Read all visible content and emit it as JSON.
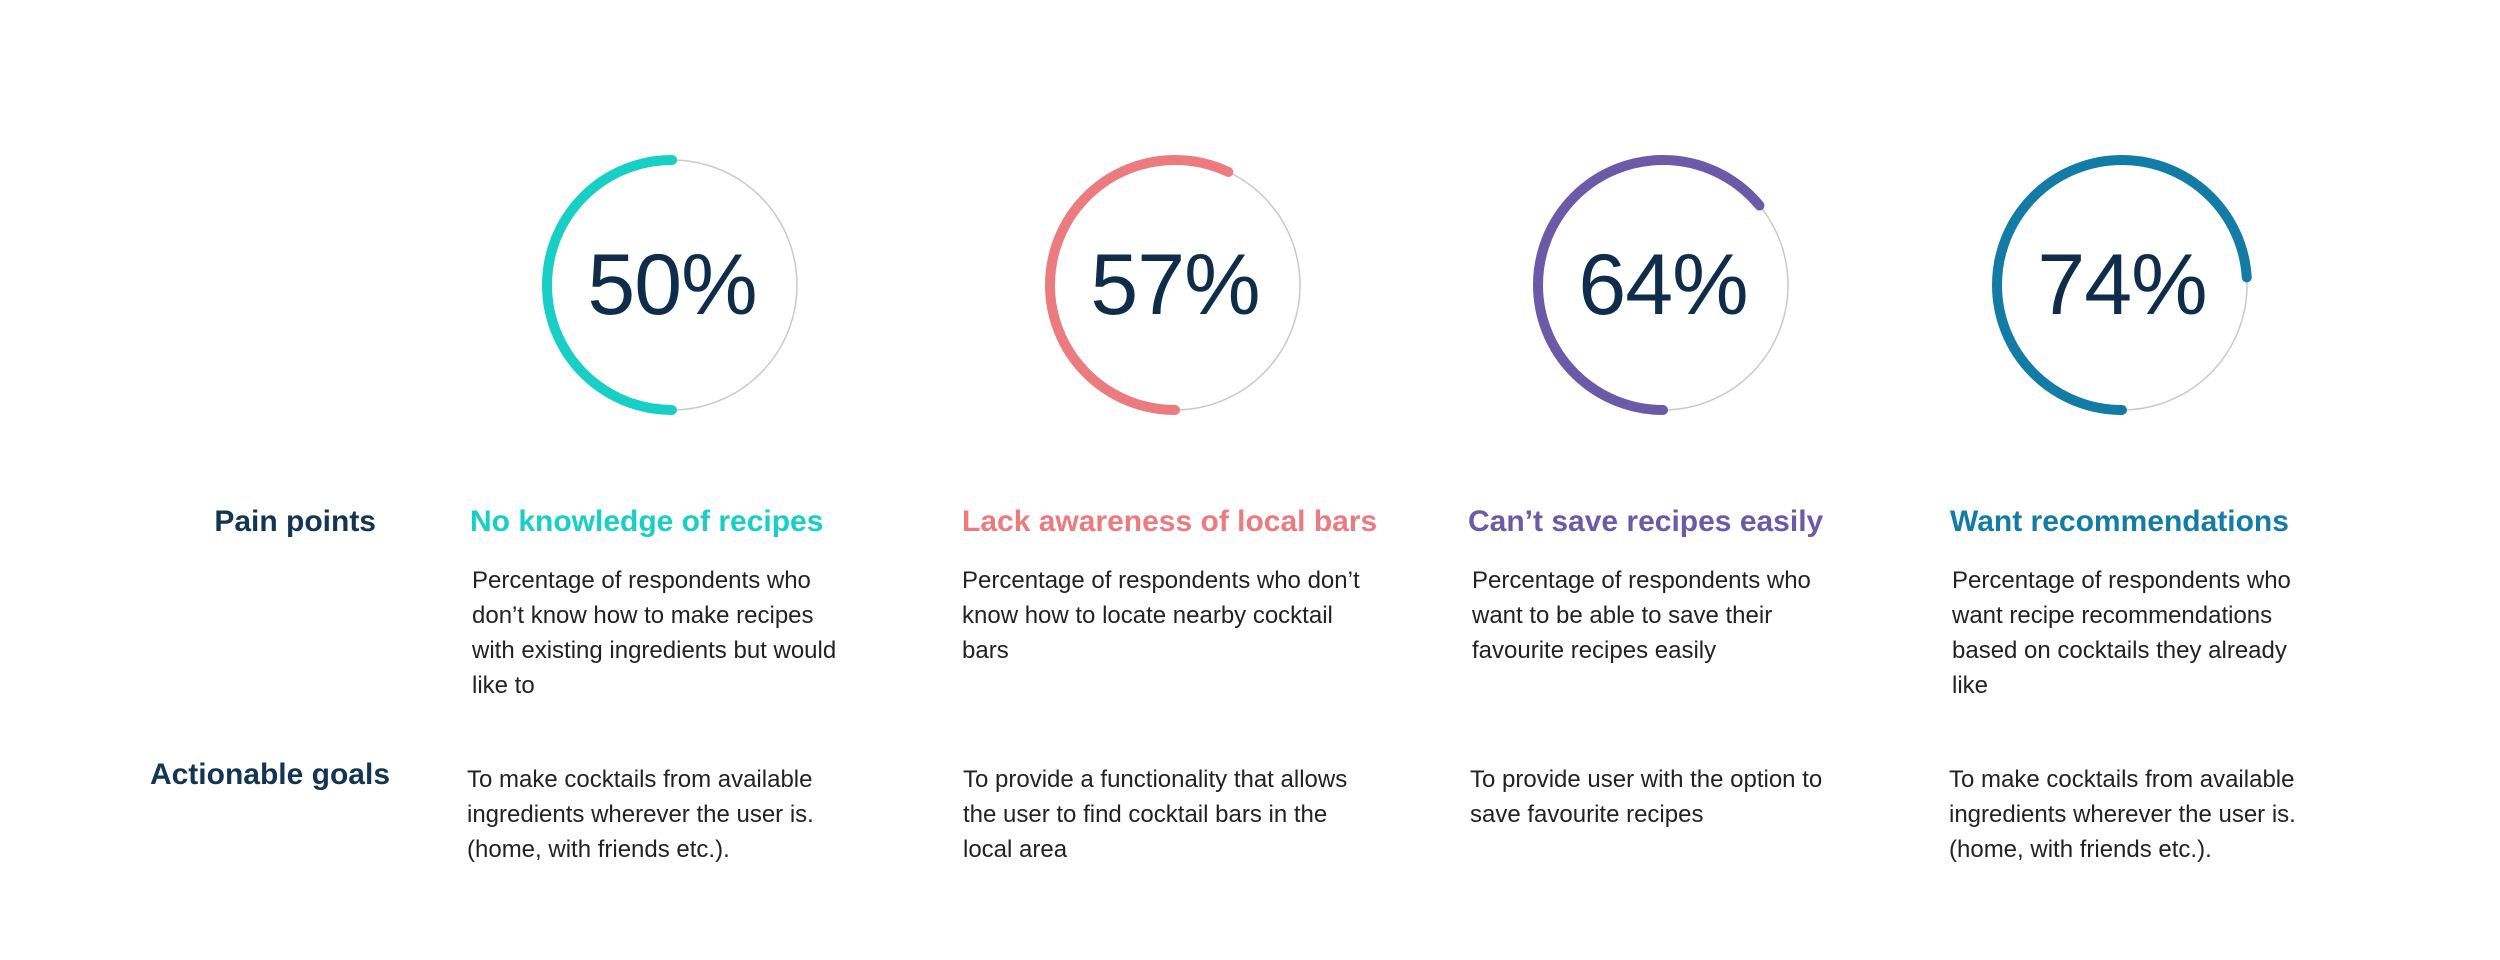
{
  "row_labels": {
    "pain_points": "Pain points",
    "actionable_goals": "Actionable goals"
  },
  "columns": [
    {
      "value": "50%",
      "percent": 50,
      "color": "#17cfc4",
      "title": "No knowledge of recipes",
      "description": "Percentage of respondents who don’t know how to make recipes with existing ingredients but would like to",
      "goal": "To make cocktails from available ingredients wherever the user is. (home, with friends etc.)."
    },
    {
      "value": "57%",
      "percent": 57,
      "color": "#ec7b80",
      "title": "Lack awareness of local bars",
      "description": "Percentage of respondents who don’t know how to locate nearby cocktail bars",
      "goal": "To provide a functionality that allows the user to find cocktail bars in the local area"
    },
    {
      "value": "64%",
      "percent": 64,
      "color": "#6b5aa8",
      "title": "Can’t save recipes easily",
      "description": "Percentage of respondents who want to be able to save their favourite recipes easily",
      "goal": "To provide user with the option to save favourite recipes"
    },
    {
      "value": "74%",
      "percent": 74,
      "color": "#137ca6",
      "title": "Want recommendations",
      "description": "Percentage of respondents who want recipe recommendations based on cocktails they already like",
      "goal": "To make cocktails from available ingredients wherever the user is. (home, with friends etc.)."
    }
  ]
}
